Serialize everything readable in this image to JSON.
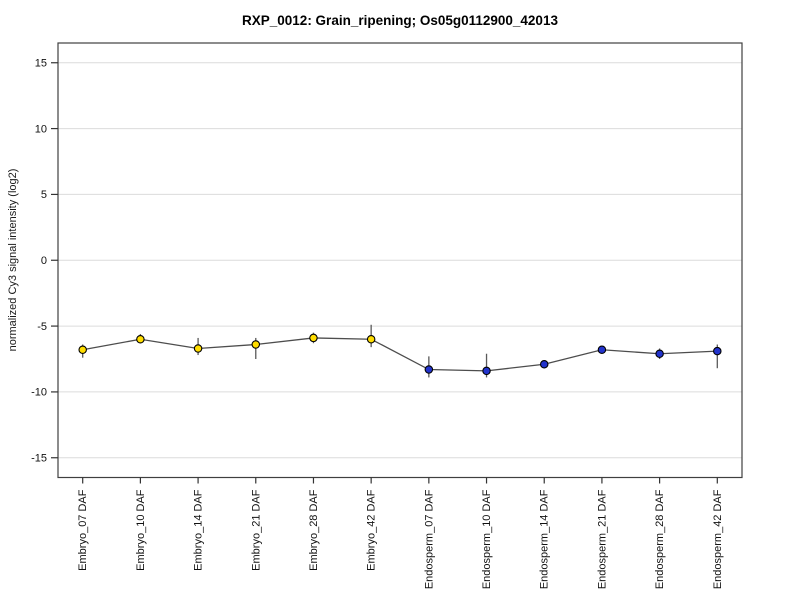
{
  "chart_data": {
    "type": "line",
    "title": "RXP_0012: Grain_ripening; Os05g0112900_42013",
    "xlabel": "",
    "ylabel": "normalized Cy3 signal intensity (log2)",
    "ylim": [
      -16.5,
      16.5
    ],
    "yticks": [
      -15,
      -10,
      -5,
      0,
      5,
      10,
      15
    ],
    "grid": "horizontal-light",
    "legend_position": "none",
    "marker": "filled-circle-black-outline",
    "error_bars": true,
    "connected_line": true,
    "categories": [
      "Embryo_07 DAF",
      "Embryo_10 DAF",
      "Embryo_14 DAF",
      "Embryo_21 DAF",
      "Embryo_28 DAF",
      "Embryo_42 DAF",
      "Endosperm_07 DAF",
      "Endosperm_10 DAF",
      "Endosperm_14 DAF",
      "Endosperm_21 DAF",
      "Endosperm_28 DAF",
      "Endosperm_42 DAF"
    ],
    "series": [
      {
        "name": "Embryo",
        "color": "#ffdd00",
        "x_indices": [
          0,
          1,
          2,
          3,
          4,
          5
        ],
        "values": [
          -6.8,
          -6.0,
          -6.7,
          -6.4,
          -5.9,
          -6.0
        ],
        "err_low": [
          -7.4,
          -6.3,
          -7.2,
          -7.5,
          -6.3,
          -6.6
        ],
        "err_high": [
          -6.4,
          -5.6,
          -5.9,
          -5.9,
          -5.5,
          -4.9
        ]
      },
      {
        "name": "Endosperm",
        "color": "#2233cc",
        "x_indices": [
          6,
          7,
          8,
          9,
          10,
          11
        ],
        "values": [
          -8.3,
          -8.4,
          -7.9,
          -6.8,
          -7.1,
          -6.9
        ],
        "err_low": [
          -8.9,
          -8.9,
          -8.2,
          -7.0,
          -7.5,
          -8.2
        ],
        "err_high": [
          -7.3,
          -7.1,
          -7.6,
          -6.6,
          -6.7,
          -6.4
        ]
      }
    ],
    "colors": {
      "background": "#ffffff",
      "plot_border": "#3f3f3f",
      "gridline": "#dcdcdc",
      "tick": "#333333",
      "text": "#111111",
      "connect_line": "#4d4d4d",
      "error_bar": "#5a5a5a"
    }
  }
}
